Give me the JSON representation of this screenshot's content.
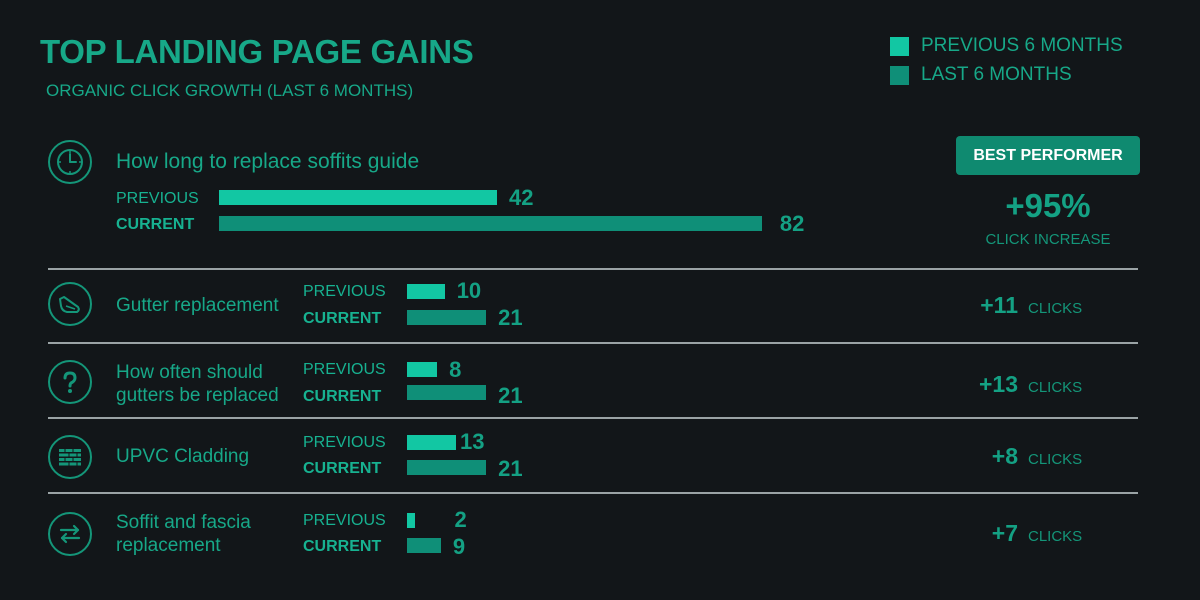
{
  "title": "TOP LANDING PAGE GAINS",
  "subtitle": "ORGANIC CLICK GROWTH (LAST 6 MONTHS)",
  "colors": {
    "previous": "#12c7a3",
    "current": "#0f8f78",
    "background": "#121619"
  },
  "chart_data": {
    "type": "bar",
    "orientation": "horizontal",
    "title": "TOP LANDING PAGE GAINS",
    "subtitle": "ORGANIC CLICK GROWTH (LAST 6 MONTHS)",
    "legend": {
      "position": "top-right",
      "entries": [
        "PREVIOUS 6 MONTHS",
        "LAST 6 MONTHS"
      ]
    },
    "row_labels": {
      "previous": "PREVIOUS",
      "current": "CURRENT"
    },
    "categories": [
      "How long to replace soffits guide",
      "Gutter replacement",
      "How often should gutters be replaced",
      "UPVC Cladding",
      "Soffit and fascia replacement"
    ],
    "series": [
      {
        "name": "PREVIOUS 6 MONTHS",
        "values": [
          42,
          10,
          8,
          13,
          2
        ]
      },
      {
        "name": "LAST 6 MONTHS",
        "values": [
          82,
          21,
          21,
          21,
          9
        ]
      }
    ],
    "icons": [
      "clock-icon",
      "gutter-icon",
      "question-icon",
      "cladding-icon",
      "swap-icon"
    ],
    "best_performer": {
      "badge": "BEST PERFORMER",
      "percent": "+95%",
      "label": "CLICK INCREASE"
    },
    "gains": [
      "+11",
      "+13",
      "+8",
      "+7"
    ],
    "gain_unit": "CLICKS"
  }
}
